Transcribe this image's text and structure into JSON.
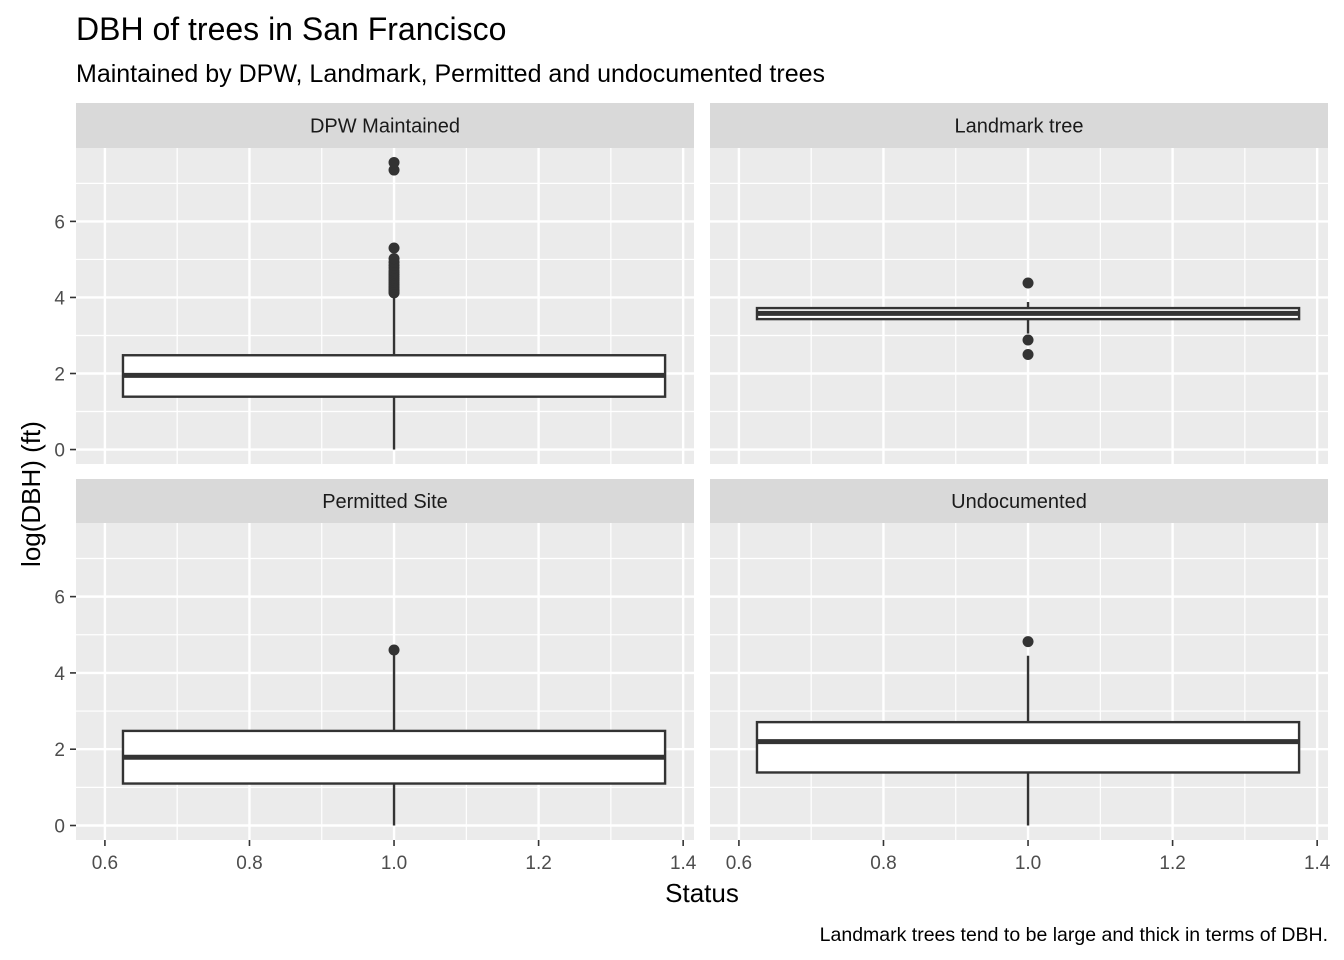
{
  "chart_data": {
    "type": "boxplot",
    "title": "DBH of trees in San Francisco",
    "subtitle": "Maintained by DPW, Landmark, Permitted and undocumented trees",
    "xlabel": "Status",
    "ylabel": "log(DBH) (ft)",
    "caption": "Landmark trees tend to be large and thick in terms of DBH.",
    "xlim": [
      0.6,
      1.4
    ],
    "ylim": [
      0,
      7.6
    ],
    "x_ticks": [
      "0.6",
      "0.8",
      "1.0",
      "1.2",
      "1.4"
    ],
    "y_ticks": [
      "0",
      "2",
      "4",
      "6"
    ],
    "grid": true,
    "facets": [
      {
        "label": "DPW Maintained",
        "x": 1.0,
        "box_xmin": 0.625,
        "box_xmax": 1.375,
        "whisker_low": 0.0,
        "q1": 1.39,
        "median": 1.95,
        "q3": 2.48,
        "whisker_high": 4.1,
        "outliers": [
          4.12,
          4.15,
          4.18,
          4.22,
          4.26,
          4.3,
          4.35,
          4.4,
          4.45,
          4.5,
          4.55,
          4.6,
          4.65,
          4.7,
          4.78,
          4.85,
          4.93,
          5.02,
          5.3,
          7.35,
          7.55
        ]
      },
      {
        "label": "Landmark tree",
        "x": 1.0,
        "box_xmin": 0.625,
        "box_xmax": 1.375,
        "whisker_low": 3.05,
        "q1": 3.43,
        "median": 3.58,
        "q3": 3.72,
        "whisker_high": 3.88,
        "outliers": [
          4.38,
          2.88,
          2.5
        ]
      },
      {
        "label": "Permitted Site",
        "x": 1.0,
        "box_xmin": 0.625,
        "box_xmax": 1.375,
        "whisker_low": 0.0,
        "q1": 1.1,
        "median": 1.79,
        "q3": 2.48,
        "whisker_high": 4.55,
        "outliers": [
          4.6
        ]
      },
      {
        "label": "Undocumented",
        "x": 1.0,
        "box_xmin": 0.625,
        "box_xmax": 1.375,
        "whisker_low": 0.0,
        "q1": 1.39,
        "median": 2.2,
        "q3": 2.71,
        "whisker_high": 4.45,
        "outliers": [
          4.82
        ]
      }
    ]
  }
}
